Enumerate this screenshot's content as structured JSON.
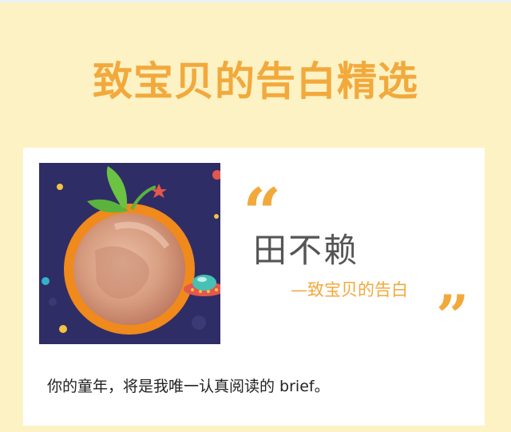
{
  "header": {
    "title": "致宝贝的告白精选"
  },
  "card": {
    "open_quote": "“",
    "close_quote": "”",
    "author_name": "田不赖",
    "author_subtitle": "—致宝贝的告白",
    "message": "你的童年，将是我唯一认真阅读的 brief。"
  },
  "colors": {
    "background": "#fdf2c4",
    "accent": "#f2a93c",
    "card": "#ffffff",
    "photo_frame": "#2f2d66"
  },
  "icons": {
    "photo_frame": "orange-frame-icon",
    "ufo": "ufo-icon"
  }
}
